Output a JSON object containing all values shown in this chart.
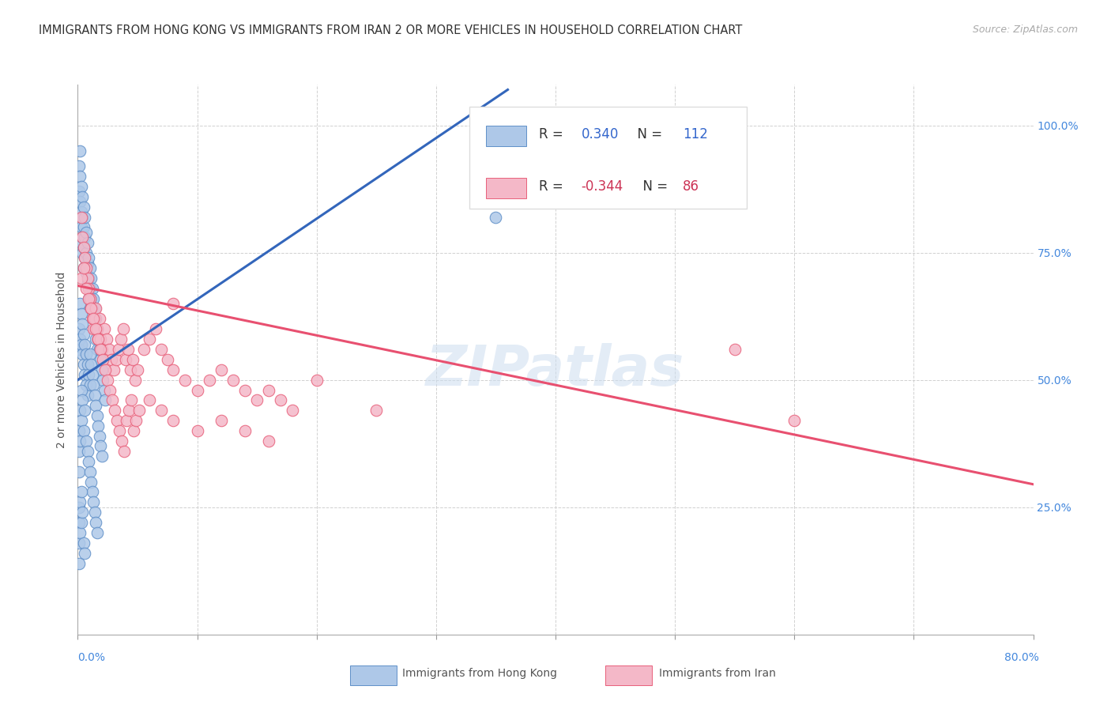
{
  "title": "IMMIGRANTS FROM HONG KONG VS IMMIGRANTS FROM IRAN 2 OR MORE VEHICLES IN HOUSEHOLD CORRELATION CHART",
  "source": "Source: ZipAtlas.com",
  "ylabel": "2 or more Vehicles in Household",
  "legend_hk_R": "0.340",
  "legend_hk_N": "112",
  "legend_iran_R": "-0.344",
  "legend_iran_N": "86",
  "watermark": "ZIPatlas",
  "hk_fill": "#aec8e8",
  "iran_fill": "#f4b8c8",
  "hk_edge": "#6090c8",
  "iran_edge": "#e8607a",
  "hk_line": "#3366bb",
  "iran_line": "#e85070",
  "background": "#ffffff",
  "xlim": [
    0.0,
    0.8
  ],
  "ylim": [
    0.0,
    1.08
  ],
  "hk_trend_x": [
    0.0,
    0.36
  ],
  "hk_trend_y": [
    0.5,
    1.07
  ],
  "iran_trend_x": [
    0.0,
    0.8
  ],
  "iran_trend_y": [
    0.685,
    0.295
  ],
  "hk_x": [
    0.001,
    0.001,
    0.002,
    0.002,
    0.002,
    0.003,
    0.003,
    0.003,
    0.003,
    0.004,
    0.004,
    0.004,
    0.004,
    0.005,
    0.005,
    0.005,
    0.005,
    0.006,
    0.006,
    0.006,
    0.007,
    0.007,
    0.007,
    0.008,
    0.008,
    0.008,
    0.009,
    0.009,
    0.009,
    0.01,
    0.01,
    0.01,
    0.011,
    0.011,
    0.012,
    0.012,
    0.013,
    0.013,
    0.014,
    0.014,
    0.015,
    0.015,
    0.016,
    0.016,
    0.017,
    0.018,
    0.019,
    0.02,
    0.021,
    0.022,
    0.001,
    0.001,
    0.002,
    0.002,
    0.003,
    0.003,
    0.004,
    0.004,
    0.005,
    0.005,
    0.006,
    0.006,
    0.007,
    0.007,
    0.008,
    0.008,
    0.009,
    0.01,
    0.01,
    0.011,
    0.012,
    0.013,
    0.014,
    0.015,
    0.016,
    0.017,
    0.018,
    0.019,
    0.02,
    0.023,
    0.001,
    0.001,
    0.001,
    0.002,
    0.002,
    0.003,
    0.003,
    0.004,
    0.005,
    0.006,
    0.007,
    0.008,
    0.009,
    0.01,
    0.011,
    0.012,
    0.013,
    0.014,
    0.015,
    0.016,
    0.001,
    0.001,
    0.001,
    0.001,
    0.002,
    0.002,
    0.003,
    0.003,
    0.004,
    0.005,
    0.006,
    0.35
  ],
  "hk_y": [
    0.92,
    0.87,
    0.95,
    0.9,
    0.85,
    0.88,
    0.83,
    0.8,
    0.77,
    0.86,
    0.82,
    0.78,
    0.75,
    0.84,
    0.8,
    0.76,
    0.72,
    0.82,
    0.78,
    0.74,
    0.79,
    0.75,
    0.71,
    0.77,
    0.73,
    0.69,
    0.74,
    0.7,
    0.66,
    0.72,
    0.68,
    0.64,
    0.7,
    0.66,
    0.68,
    0.64,
    0.66,
    0.62,
    0.64,
    0.6,
    0.62,
    0.58,
    0.6,
    0.56,
    0.58,
    0.56,
    0.54,
    0.52,
    0.5,
    0.48,
    0.6,
    0.56,
    0.65,
    0.58,
    0.63,
    0.57,
    0.61,
    0.55,
    0.59,
    0.53,
    0.57,
    0.51,
    0.55,
    0.49,
    0.53,
    0.47,
    0.51,
    0.55,
    0.49,
    0.53,
    0.51,
    0.49,
    0.47,
    0.45,
    0.43,
    0.41,
    0.39,
    0.37,
    0.35,
    0.46,
    0.4,
    0.36,
    0.32,
    0.44,
    0.38,
    0.48,
    0.42,
    0.46,
    0.4,
    0.44,
    0.38,
    0.36,
    0.34,
    0.32,
    0.3,
    0.28,
    0.26,
    0.24,
    0.22,
    0.2,
    0.25,
    0.22,
    0.18,
    0.14,
    0.26,
    0.2,
    0.28,
    0.22,
    0.24,
    0.18,
    0.16,
    0.82
  ],
  "iran_x": [
    0.003,
    0.004,
    0.005,
    0.006,
    0.007,
    0.008,
    0.009,
    0.01,
    0.011,
    0.012,
    0.013,
    0.014,
    0.015,
    0.016,
    0.017,
    0.018,
    0.019,
    0.02,
    0.022,
    0.024,
    0.026,
    0.028,
    0.03,
    0.032,
    0.034,
    0.036,
    0.038,
    0.04,
    0.042,
    0.044,
    0.046,
    0.048,
    0.05,
    0.055,
    0.06,
    0.065,
    0.07,
    0.075,
    0.08,
    0.09,
    0.1,
    0.11,
    0.12,
    0.13,
    0.14,
    0.15,
    0.16,
    0.17,
    0.18,
    0.2,
    0.003,
    0.005,
    0.007,
    0.009,
    0.011,
    0.013,
    0.015,
    0.017,
    0.019,
    0.021,
    0.023,
    0.025,
    0.027,
    0.029,
    0.031,
    0.033,
    0.035,
    0.037,
    0.039,
    0.041,
    0.043,
    0.045,
    0.047,
    0.049,
    0.051,
    0.06,
    0.07,
    0.08,
    0.1,
    0.12,
    0.14,
    0.16,
    0.25,
    0.55,
    0.6,
    0.08
  ],
  "iran_y": [
    0.82,
    0.78,
    0.76,
    0.74,
    0.72,
    0.7,
    0.68,
    0.66,
    0.64,
    0.62,
    0.6,
    0.62,
    0.64,
    0.6,
    0.58,
    0.62,
    0.58,
    0.56,
    0.6,
    0.58,
    0.56,
    0.54,
    0.52,
    0.54,
    0.56,
    0.58,
    0.6,
    0.54,
    0.56,
    0.52,
    0.54,
    0.5,
    0.52,
    0.56,
    0.58,
    0.6,
    0.56,
    0.54,
    0.52,
    0.5,
    0.48,
    0.5,
    0.52,
    0.5,
    0.48,
    0.46,
    0.48,
    0.46,
    0.44,
    0.5,
    0.7,
    0.72,
    0.68,
    0.66,
    0.64,
    0.62,
    0.6,
    0.58,
    0.56,
    0.54,
    0.52,
    0.5,
    0.48,
    0.46,
    0.44,
    0.42,
    0.4,
    0.38,
    0.36,
    0.42,
    0.44,
    0.46,
    0.4,
    0.42,
    0.44,
    0.46,
    0.44,
    0.42,
    0.4,
    0.42,
    0.4,
    0.38,
    0.44,
    0.56,
    0.42,
    0.65
  ]
}
